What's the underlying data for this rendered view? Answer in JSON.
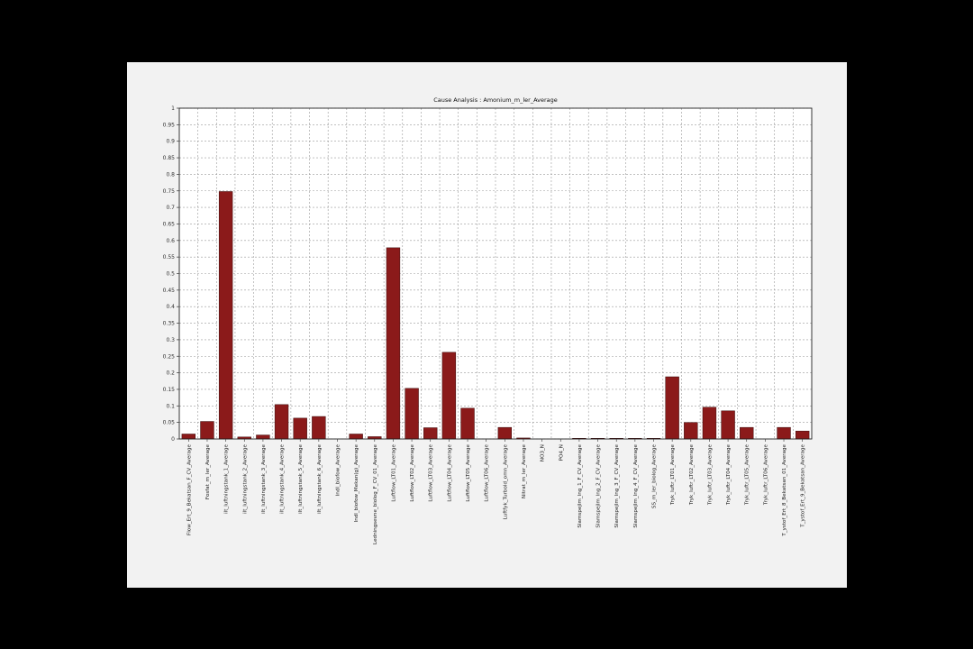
{
  "chart_data": {
    "type": "bar",
    "title": "Cause Analysis : Amonium_m_ler_Average",
    "xlabel": "",
    "ylabel": "",
    "ylim": [
      0,
      1
    ],
    "y_ticks": [
      "0",
      "0.05",
      "0.1",
      "0.15",
      "0.2",
      "0.25",
      "0.3",
      "0.35",
      "0.4",
      "0.45",
      "0.5",
      "0.55",
      "0.6",
      "0.65",
      "0.7",
      "0.75",
      "0.8",
      "0.85",
      "0.9",
      "0.95",
      "1"
    ],
    "grid": true,
    "bar_color": "#8b1a1a",
    "categories": [
      "Flow_Ert_9_Bekatsan_F_CV_Average",
      "Fosfat_m_ler_Average",
      "ilt_luftningstank_1_Average",
      "ilt_luftningstank_2_Average",
      "ilt_luftningstank_3_Average",
      "ilt_luftningstank_4_Average",
      "ilt_luftningstank_5_Average",
      "ilt_luftningstank_6_Average",
      "Indl_biofow_Average",
      "Indl_biofow_Mekan(g)_Average",
      "Ledningsevne_biolog_F_CV_01_Average",
      "Luftflow_LT01_Average",
      "Luftflow_LT02_Average",
      "Luftflow_LT03_Average",
      "Luftflow_LT04_Average",
      "Luftflow_LT05_Average",
      "Luftflow_LT06_Average",
      "Luftfyk_Turbold_omn_Average",
      "Nitrat_m_ler_Average",
      "NO3_N",
      "PO4_N",
      "Slamspejlm_lng_1_F_CV_Average",
      "Slamspejlm_lng_2_F_CV_Average",
      "Slamspejlm_lng_3_F_CV_Average",
      "Slamspejlm_lng_4_F_CV_Average",
      "SS_m_ler_biolog_Average",
      "Tryk_luftr_LT01_Average",
      "Tryk_luftr_LT02_Average",
      "Tryk_luftr_LT03_Average",
      "Tryk_luftr_LT04_Average",
      "Tryk_luftr_LT05_Average",
      "Tryk_luftr_LT06_Average",
      "T_ystof_Ert_8_Bekatsan_01_Average",
      "T_ystof_Ert_9_Bekatsan_Average"
    ],
    "values": [
      0.015,
      0.053,
      0.748,
      0.006,
      0.012,
      0.104,
      0.063,
      0.068,
      0.0,
      0.015,
      0.007,
      0.578,
      0.153,
      0.034,
      0.262,
      0.093,
      0.0,
      0.035,
      0.003,
      0.0,
      0.0,
      0.002,
      0.002,
      0.002,
      0.002,
      0.002,
      0.188,
      0.05,
      0.096,
      0.085,
      0.035,
      0.0,
      0.035,
      0.024
    ]
  }
}
